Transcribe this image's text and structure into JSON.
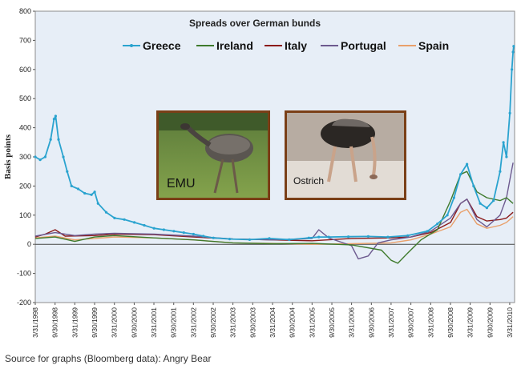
{
  "source_note": "Source for graphs (Bloomberg data): Angry Bear",
  "photos": {
    "emu_label": "EMU",
    "ostrich_label": "Ostrich"
  },
  "chart_data": {
    "type": "line",
    "title": "Spreads over German bunds",
    "ylabel": "Basis points",
    "xlabel": "",
    "ylim": [
      -200,
      800
    ],
    "yticks": [
      -200,
      -100,
      0,
      100,
      200,
      300,
      400,
      500,
      600,
      700,
      800
    ],
    "xlim": [
      "1998-03-31",
      "2010-05-15"
    ],
    "xtick_labels": [
      "3/31/1998",
      "9/30/1998",
      "3/31/1999",
      "9/30/1999",
      "3/31/2000",
      "9/30/2000",
      "3/31/2001",
      "9/30/2001",
      "3/31/2002",
      "9/30/2002",
      "3/31/2003",
      "9/30/2003",
      "3/31/2004",
      "9/30/2004",
      "3/31/2005",
      "9/30/2005",
      "3/31/2006",
      "9/30/2006",
      "3/31/2007",
      "9/30/2007",
      "3/31/2008",
      "9/30/2008",
      "3/31/2009",
      "9/30/2009",
      "3/31/2010"
    ],
    "legend_position": "top",
    "grid": false,
    "series": [
      {
        "name": "Greece",
        "color": "#2aa3cf",
        "points": [
          [
            "1998-03-31",
            300
          ],
          [
            "1998-05-15",
            290
          ],
          [
            "1998-07-01",
            300
          ],
          [
            "1998-08-20",
            360
          ],
          [
            "1998-09-20",
            430
          ],
          [
            "1998-10-05",
            440
          ],
          [
            "1998-11-01",
            360
          ],
          [
            "1998-12-15",
            300
          ],
          [
            "1999-01-20",
            250
          ],
          [
            "1999-03-01",
            200
          ],
          [
            "1999-05-01",
            190
          ],
          [
            "1999-07-01",
            175
          ],
          [
            "1999-09-01",
            170
          ],
          [
            "1999-10-01",
            180
          ],
          [
            "1999-11-01",
            140
          ],
          [
            "2000-01-15",
            110
          ],
          [
            "2000-04-01",
            90
          ],
          [
            "2000-07-01",
            85
          ],
          [
            "2000-10-01",
            75
          ],
          [
            "2001-01-01",
            65
          ],
          [
            "2001-04-01",
            55
          ],
          [
            "2001-07-01",
            50
          ],
          [
            "2001-10-01",
            45
          ],
          [
            "2002-01-01",
            40
          ],
          [
            "2002-04-01",
            35
          ],
          [
            "2002-07-01",
            28
          ],
          [
            "2002-10-01",
            22
          ],
          [
            "2003-03-01",
            18
          ],
          [
            "2003-09-01",
            16
          ],
          [
            "2004-03-01",
            20
          ],
          [
            "2004-09-01",
            16
          ],
          [
            "2005-03-01",
            22
          ],
          [
            "2005-06-01",
            25
          ],
          [
            "2005-09-01",
            25
          ],
          [
            "2006-03-01",
            26
          ],
          [
            "2006-09-01",
            27
          ],
          [
            "2007-03-01",
            25
          ],
          [
            "2007-09-01",
            30
          ],
          [
            "2008-03-01",
            45
          ],
          [
            "2008-06-01",
            70
          ],
          [
            "2008-09-01",
            100
          ],
          [
            "2008-11-01",
            160
          ],
          [
            "2009-01-01",
            240
          ],
          [
            "2009-03-01",
            275
          ],
          [
            "2009-05-01",
            200
          ],
          [
            "2009-07-01",
            140
          ],
          [
            "2009-09-01",
            125
          ],
          [
            "2009-11-01",
            150
          ],
          [
            "2010-01-01",
            250
          ],
          [
            "2010-02-01",
            350
          ],
          [
            "2010-03-01",
            300
          ],
          [
            "2010-04-01",
            450
          ],
          [
            "2010-04-20",
            600
          ],
          [
            "2010-05-01",
            660
          ],
          [
            "2010-05-07",
            680
          ]
        ]
      },
      {
        "name": "Ireland",
        "color": "#3e7a2c",
        "points": [
          [
            "1998-03-31",
            20
          ],
          [
            "1998-09-30",
            25
          ],
          [
            "1999-03-31",
            10
          ],
          [
            "1999-09-30",
            25
          ],
          [
            "2000-03-31",
            30
          ],
          [
            "2001-03-31",
            22
          ],
          [
            "2002-03-31",
            15
          ],
          [
            "2003-03-31",
            5
          ],
          [
            "2004-03-31",
            2
          ],
          [
            "2005-03-31",
            3
          ],
          [
            "2006-03-31",
            -2
          ],
          [
            "2007-01-01",
            -20
          ],
          [
            "2007-04-01",
            -55
          ],
          [
            "2007-06-01",
            -65
          ],
          [
            "2007-09-01",
            -30
          ],
          [
            "2008-01-01",
            15
          ],
          [
            "2008-06-01",
            50
          ],
          [
            "2008-10-01",
            150
          ],
          [
            "2009-01-01",
            240
          ],
          [
            "2009-03-01",
            250
          ],
          [
            "2009-06-01",
            180
          ],
          [
            "2009-09-01",
            160
          ],
          [
            "2010-01-01",
            150
          ],
          [
            "2010-03-01",
            160
          ],
          [
            "2010-05-01",
            140
          ]
        ]
      },
      {
        "name": "Italy",
        "color": "#8b1a1a",
        "points": [
          [
            "1998-03-31",
            25
          ],
          [
            "1998-07-01",
            35
          ],
          [
            "1998-10-01",
            50
          ],
          [
            "1999-01-01",
            28
          ],
          [
            "1999-09-30",
            30
          ],
          [
            "2000-03-31",
            35
          ],
          [
            "2001-03-31",
            33
          ],
          [
            "2002-03-31",
            25
          ],
          [
            "2003-03-31",
            18
          ],
          [
            "2004-03-31",
            15
          ],
          [
            "2005-03-31",
            12
          ],
          [
            "2006-03-31",
            20
          ],
          [
            "2007-03-31",
            22
          ],
          [
            "2007-09-30",
            25
          ],
          [
            "2008-03-31",
            40
          ],
          [
            "2008-09-30",
            75
          ],
          [
            "2009-01-01",
            140
          ],
          [
            "2009-03-01",
            155
          ],
          [
            "2009-06-01",
            95
          ],
          [
            "2009-09-01",
            80
          ],
          [
            "2010-01-01",
            85
          ],
          [
            "2010-03-01",
            90
          ],
          [
            "2010-05-01",
            110
          ]
        ]
      },
      {
        "name": "Portugal",
        "color": "#6d5a8f",
        "points": [
          [
            "1998-03-31",
            28
          ],
          [
            "1998-09-30",
            40
          ],
          [
            "1999-03-31",
            30
          ],
          [
            "1999-09-30",
            35
          ],
          [
            "2000-03-31",
            38
          ],
          [
            "2001-03-31",
            35
          ],
          [
            "2002-03-31",
            28
          ],
          [
            "2003-03-31",
            18
          ],
          [
            "2004-03-31",
            15
          ],
          [
            "2005-03-31",
            20
          ],
          [
            "2005-06-01",
            50
          ],
          [
            "2005-09-01",
            22
          ],
          [
            "2006-03-31",
            -5
          ],
          [
            "2006-06-01",
            -50
          ],
          [
            "2006-09-01",
            -40
          ],
          [
            "2006-12-01",
            5
          ],
          [
            "2007-03-31",
            15
          ],
          [
            "2007-09-30",
            25
          ],
          [
            "2008-03-31",
            45
          ],
          [
            "2008-09-30",
            90
          ],
          [
            "2009-01-01",
            140
          ],
          [
            "2009-03-01",
            155
          ],
          [
            "2009-06-01",
            85
          ],
          [
            "2009-09-01",
            60
          ],
          [
            "2010-01-01",
            100
          ],
          [
            "2010-03-01",
            160
          ],
          [
            "2010-05-01",
            280
          ]
        ]
      },
      {
        "name": "Spain",
        "color": "#e9a06b",
        "points": [
          [
            "1998-03-31",
            22
          ],
          [
            "1998-09-30",
            28
          ],
          [
            "1999-03-31",
            15
          ],
          [
            "1999-09-30",
            20
          ],
          [
            "2000-03-31",
            25
          ],
          [
            "2001-03-31",
            22
          ],
          [
            "2002-03-31",
            15
          ],
          [
            "2003-03-31",
            5
          ],
          [
            "2004-03-31",
            3
          ],
          [
            "2005-03-31",
            0
          ],
          [
            "2006-03-31",
            2
          ],
          [
            "2007-03-31",
            5
          ],
          [
            "2007-09-30",
            15
          ],
          [
            "2008-03-31",
            35
          ],
          [
            "2008-09-30",
            60
          ],
          [
            "2009-01-01",
            110
          ],
          [
            "2009-03-01",
            120
          ],
          [
            "2009-06-01",
            70
          ],
          [
            "2009-09-01",
            55
          ],
          [
            "2010-01-01",
            65
          ],
          [
            "2010-03-01",
            75
          ],
          [
            "2010-05-01",
            95
          ]
        ]
      }
    ]
  }
}
